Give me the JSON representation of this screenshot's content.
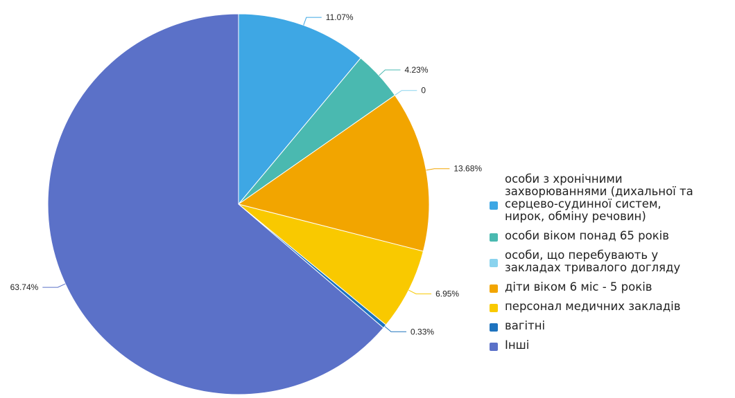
{
  "chart_data": {
    "type": "pie",
    "title": "",
    "slices": [
      {
        "label": "особи з хронічними\nзахворюваннями (дихальної та\n серцево-судинної систем,\nнирок, обміну речовин)",
        "value": 11.07,
        "value_label": "11.07%",
        "color": "#3EA7E4"
      },
      {
        "label": "особи віком понад 65 років",
        "value": 4.23,
        "value_label": "4.23%",
        "color": "#4AB9B0"
      },
      {
        "label": "особи, що перебувають у\nзакладах тривалого догляду",
        "value": 0,
        "value_label": "0",
        "color": "#8AD3EE"
      },
      {
        "label": "діти віком 6 міс - 5 років",
        "value": 13.68,
        "value_label": "13.68%",
        "color": "#F2A500"
      },
      {
        "label": "персонал медичних закладів",
        "value": 6.95,
        "value_label": "6.95%",
        "color": "#F9C900"
      },
      {
        "label": "вагітні",
        "value": 0.33,
        "value_label": "0.33%",
        "color": "#1E73BE"
      },
      {
        "label": "Інші",
        "value": 63.74,
        "value_label": "63.74%",
        "color": "#5B71C8"
      }
    ],
    "legend_position": "right"
  }
}
